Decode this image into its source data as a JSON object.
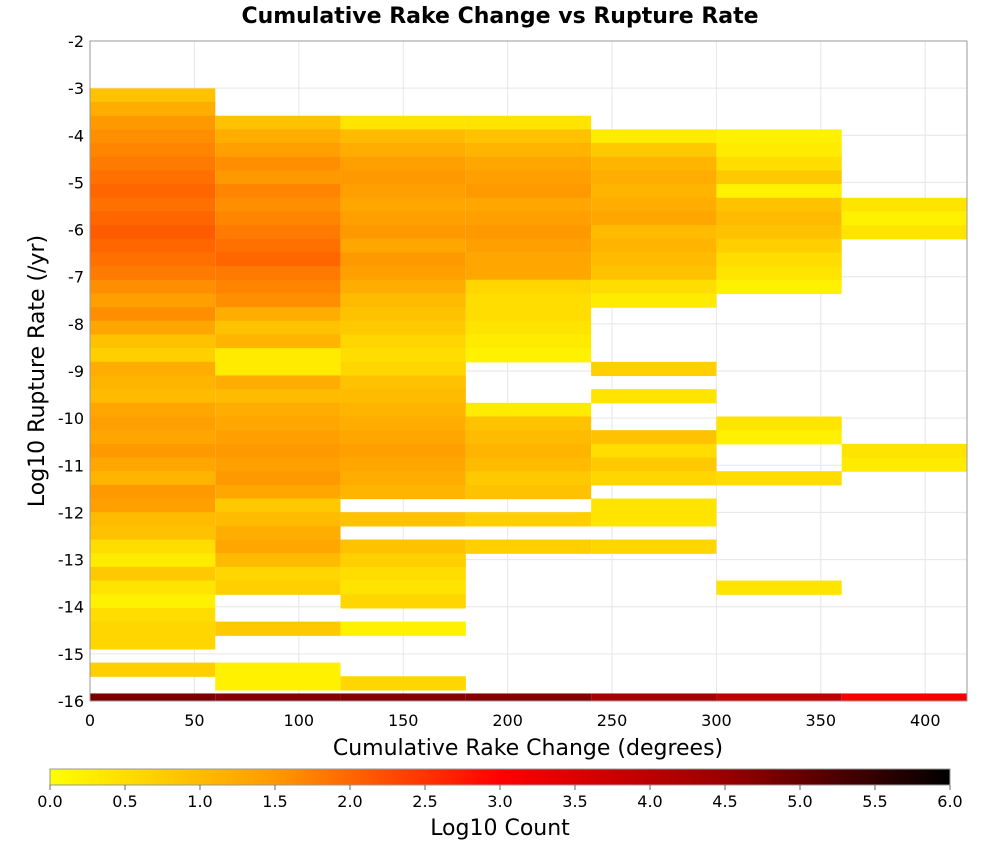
{
  "chart_data": {
    "type": "heatmap",
    "title": "Cumulative Rake Change vs Rupture Rate",
    "xlabel": "Cumulative Rake Change (degrees)",
    "ylabel": "Log10 Rupture Rate (/yr)",
    "xlim": [
      0,
      420
    ],
    "ylim": [
      -16,
      -2
    ],
    "x_ticks": [
      "0",
      "50",
      "100",
      "150",
      "200",
      "250",
      "300",
      "350",
      "400"
    ],
    "y_ticks": [
      "-2",
      "-3",
      "-4",
      "-5",
      "-6",
      "-7",
      "-8",
      "-9",
      "-10",
      "-11",
      "-12",
      "-13",
      "-14",
      "-15",
      "-16"
    ],
    "grid": true,
    "colorbar": {
      "label": "Log10 Count",
      "min": 0.0,
      "max": 6.0,
      "ticks": [
        "0.0",
        "0.5",
        "1.0",
        "1.5",
        "2.0",
        "2.5",
        "3.0",
        "3.5",
        "4.0",
        "4.5",
        "5.0",
        "5.5",
        "6.0"
      ],
      "colors": [
        "#ffff00",
        "#ff9900",
        "#ff0000",
        "#990000",
        "#000000"
      ]
    },
    "x_bin_width": 60,
    "y_bin_height": 0.29,
    "columns": [
      {
        "x": 30,
        "cells": [
          [
            -3.15,
            0.9
          ],
          [
            -3.44,
            1.2
          ],
          [
            -3.73,
            1.5
          ],
          [
            -4.02,
            1.6
          ],
          [
            -4.31,
            1.7
          ],
          [
            -4.6,
            1.8
          ],
          [
            -4.89,
            1.9
          ],
          [
            -5.18,
            2.0
          ],
          [
            -5.47,
            1.9
          ],
          [
            -5.76,
            2.0
          ],
          [
            -6.05,
            2.1
          ],
          [
            -6.34,
            2.0
          ],
          [
            -6.63,
            1.9
          ],
          [
            -6.92,
            1.8
          ],
          [
            -7.21,
            1.6
          ],
          [
            -7.5,
            1.4
          ],
          [
            -7.79,
            1.6
          ],
          [
            -8.08,
            1.3
          ],
          [
            -8.37,
            0.9
          ],
          [
            -8.66,
            0.7
          ],
          [
            -8.95,
            1.2
          ],
          [
            -9.24,
            1.1
          ],
          [
            -9.53,
            1.0
          ],
          [
            -9.82,
            1.3
          ],
          [
            -10.11,
            1.4
          ],
          [
            -10.4,
            1.3
          ],
          [
            -10.69,
            1.5
          ],
          [
            -10.98,
            1.3
          ],
          [
            -11.27,
            1.1
          ],
          [
            -11.56,
            1.5
          ],
          [
            -11.85,
            1.4
          ],
          [
            -12.14,
            1.0
          ],
          [
            -12.43,
            0.9
          ],
          [
            -12.72,
            0.5
          ],
          [
            -13.01,
            0.3
          ],
          [
            -13.3,
            0.8
          ],
          [
            -13.59,
            0.4
          ],
          [
            -13.88,
            0.2
          ],
          [
            -14.17,
            0.5
          ],
          [
            -14.46,
            0.6
          ],
          [
            -14.75,
            0.6
          ],
          [
            -15.33,
            0.7
          ]
        ]
      },
      {
        "x": 90,
        "cells": [
          [
            -3.73,
            0.9
          ],
          [
            -4.02,
            1.2
          ],
          [
            -4.31,
            1.4
          ],
          [
            -4.6,
            1.6
          ],
          [
            -4.89,
            1.5
          ],
          [
            -5.18,
            1.7
          ],
          [
            -5.47,
            1.6
          ],
          [
            -5.76,
            1.7
          ],
          [
            -6.05,
            1.8
          ],
          [
            -6.34,
            1.9
          ],
          [
            -6.63,
            2.0
          ],
          [
            -6.92,
            1.8
          ],
          [
            -7.21,
            1.7
          ],
          [
            -7.5,
            1.6
          ],
          [
            -7.79,
            1.2
          ],
          [
            -8.08,
            0.9
          ],
          [
            -8.37,
            1.1
          ],
          [
            -8.66,
            0.3
          ],
          [
            -8.95,
            0.3
          ],
          [
            -9.24,
            1.2
          ],
          [
            -9.53,
            1.0
          ],
          [
            -9.82,
            1.2
          ],
          [
            -10.11,
            1.3
          ],
          [
            -10.4,
            1.4
          ],
          [
            -10.69,
            1.5
          ],
          [
            -10.98,
            1.4
          ],
          [
            -11.27,
            1.5
          ],
          [
            -11.56,
            1.3
          ],
          [
            -11.85,
            0.8
          ],
          [
            -12.14,
            1.0
          ],
          [
            -12.43,
            1.2
          ],
          [
            -12.72,
            1.3
          ],
          [
            -13.01,
            1.0
          ],
          [
            -13.3,
            0.6
          ],
          [
            -13.59,
            0.7
          ],
          [
            -14.46,
            0.8
          ],
          [
            -15.33,
            0.2
          ],
          [
            -15.62,
            0.2
          ]
        ]
      },
      {
        "x": 150,
        "cells": [
          [
            -3.73,
            0.4
          ],
          [
            -4.02,
            1.0
          ],
          [
            -4.31,
            1.2
          ],
          [
            -4.6,
            1.4
          ],
          [
            -4.89,
            1.5
          ],
          [
            -5.18,
            1.4
          ],
          [
            -5.47,
            1.3
          ],
          [
            -5.76,
            1.4
          ],
          [
            -6.05,
            1.5
          ],
          [
            -6.34,
            1.3
          ],
          [
            -6.63,
            1.5
          ],
          [
            -6.92,
            1.4
          ],
          [
            -7.21,
            1.2
          ],
          [
            -7.5,
            1.0
          ],
          [
            -7.79,
            0.9
          ],
          [
            -8.08,
            0.8
          ],
          [
            -8.37,
            0.6
          ],
          [
            -8.66,
            0.5
          ],
          [
            -8.95,
            0.6
          ],
          [
            -9.24,
            0.9
          ],
          [
            -9.53,
            1.0
          ],
          [
            -9.82,
            1.1
          ],
          [
            -10.11,
            1.2
          ],
          [
            -10.4,
            1.3
          ],
          [
            -10.69,
            1.4
          ],
          [
            -10.98,
            1.3
          ],
          [
            -11.27,
            1.2
          ],
          [
            -11.56,
            1.1
          ],
          [
            -12.14,
            0.9
          ],
          [
            -12.72,
            0.9
          ],
          [
            -13.01,
            0.7
          ],
          [
            -13.3,
            0.5
          ],
          [
            -13.59,
            0.4
          ],
          [
            -13.88,
            0.6
          ],
          [
            -14.46,
            0.2
          ],
          [
            -15.62,
            0.6
          ]
        ]
      },
      {
        "x": 210,
        "cells": [
          [
            -3.73,
            0.4
          ],
          [
            -4.02,
            0.9
          ],
          [
            -4.31,
            1.1
          ],
          [
            -4.6,
            1.3
          ],
          [
            -4.89,
            1.4
          ],
          [
            -5.18,
            1.5
          ],
          [
            -5.47,
            1.3
          ],
          [
            -5.76,
            1.4
          ],
          [
            -6.05,
            1.5
          ],
          [
            -6.34,
            1.4
          ],
          [
            -6.63,
            1.3
          ],
          [
            -6.92,
            1.3
          ],
          [
            -7.21,
            0.6
          ],
          [
            -7.5,
            0.5
          ],
          [
            -7.79,
            0.5
          ],
          [
            -8.08,
            0.4
          ],
          [
            -8.37,
            0.3
          ],
          [
            -8.66,
            0.2
          ],
          [
            -9.82,
            0.3
          ],
          [
            -10.11,
            0.9
          ],
          [
            -10.4,
            1.0
          ],
          [
            -10.69,
            1.1
          ],
          [
            -10.98,
            1.0
          ],
          [
            -11.27,
            0.8
          ],
          [
            -11.56,
            0.9
          ],
          [
            -12.14,
            0.7
          ],
          [
            -12.72,
            0.7
          ]
        ]
      },
      {
        "x": 270,
        "cells": [
          [
            -4.02,
            0.3
          ],
          [
            -4.31,
            0.8
          ],
          [
            -4.6,
            1.1
          ],
          [
            -4.89,
            1.2
          ],
          [
            -5.18,
            1.1
          ],
          [
            -5.47,
            1.2
          ],
          [
            -5.76,
            1.3
          ],
          [
            -6.05,
            1.0
          ],
          [
            -6.34,
            1.1
          ],
          [
            -6.63,
            1.0
          ],
          [
            -6.92,
            0.9
          ],
          [
            -7.21,
            0.5
          ],
          [
            -7.5,
            0.3
          ],
          [
            -8.95,
            0.7
          ],
          [
            -9.53,
            0.4
          ],
          [
            -10.4,
            0.9
          ],
          [
            -10.69,
            0.5
          ],
          [
            -10.98,
            0.8
          ],
          [
            -11.27,
            0.6
          ],
          [
            -11.85,
            0.4
          ],
          [
            -12.14,
            0.4
          ],
          [
            -12.72,
            0.6
          ]
        ]
      },
      {
        "x": 330,
        "cells": [
          [
            -4.02,
            0.2
          ],
          [
            -4.31,
            0.3
          ],
          [
            -4.6,
            0.5
          ],
          [
            -4.89,
            0.8
          ],
          [
            -5.18,
            0.2
          ],
          [
            -5.47,
            0.9
          ],
          [
            -5.76,
            1.0
          ],
          [
            -6.05,
            0.9
          ],
          [
            -6.34,
            0.7
          ],
          [
            -6.63,
            0.5
          ],
          [
            -6.92,
            0.4
          ],
          [
            -7.21,
            0.2
          ],
          [
            -10.11,
            0.4
          ],
          [
            -10.4,
            0.2
          ],
          [
            -11.27,
            0.5
          ],
          [
            -13.59,
            0.4
          ]
        ]
      },
      {
        "x": 390,
        "cells": [
          [
            -5.47,
            0.4
          ],
          [
            -5.76,
            0.2
          ],
          [
            -6.05,
            0.4
          ],
          [
            -10.69,
            0.4
          ],
          [
            -10.98,
            0.3
          ]
        ]
      }
    ],
    "bottom_row": {
      "y": -15.92,
      "cells": [
        [
          30,
          4.8
        ],
        [
          90,
          4.7
        ],
        [
          150,
          4.7
        ],
        [
          210,
          4.7
        ],
        [
          270,
          4.3
        ],
        [
          330,
          3.9
        ],
        [
          390,
          3.1
        ]
      ]
    }
  }
}
